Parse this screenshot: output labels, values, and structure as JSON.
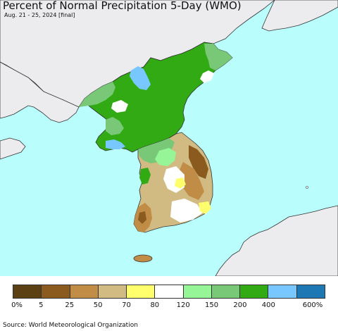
{
  "header": {
    "title": "Percent of Normal Precipitation 5-Day (WMO)",
    "subtitle": "Aug. 21 - 25, 2024 [final]"
  },
  "map": {
    "colors": {
      "sea": "#b9fdfd",
      "foreign_land": "#ecebee",
      "border": "#333333"
    }
  },
  "legend": {
    "colors": [
      "#5a4013",
      "#8a5a1e",
      "#c08c46",
      "#d2bb82",
      "#ffff6e",
      "#ffffff",
      "#96f596",
      "#78c878",
      "#32aa14",
      "#78c8ff",
      "#1e78b4"
    ],
    "ticks": [
      "0%",
      "5",
      "25",
      "50",
      "70",
      "80",
      "120",
      "150",
      "200",
      "400",
      "600%"
    ]
  },
  "footer": {
    "source": "Source: World Meteorological Organization"
  }
}
